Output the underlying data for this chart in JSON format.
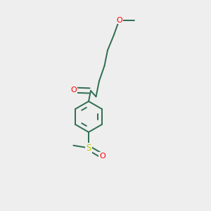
{
  "bg_color": "#eeeeee",
  "bond_color": "#2d6e50",
  "O_color": "#ff0000",
  "S_color": "#c8c800",
  "line_width": 1.4,
  "dbo": 0.012,
  "figsize": [
    3.0,
    3.0
  ],
  "dpi": 100,
  "xlim": [
    0,
    1
  ],
  "ylim": [
    0,
    1
  ]
}
